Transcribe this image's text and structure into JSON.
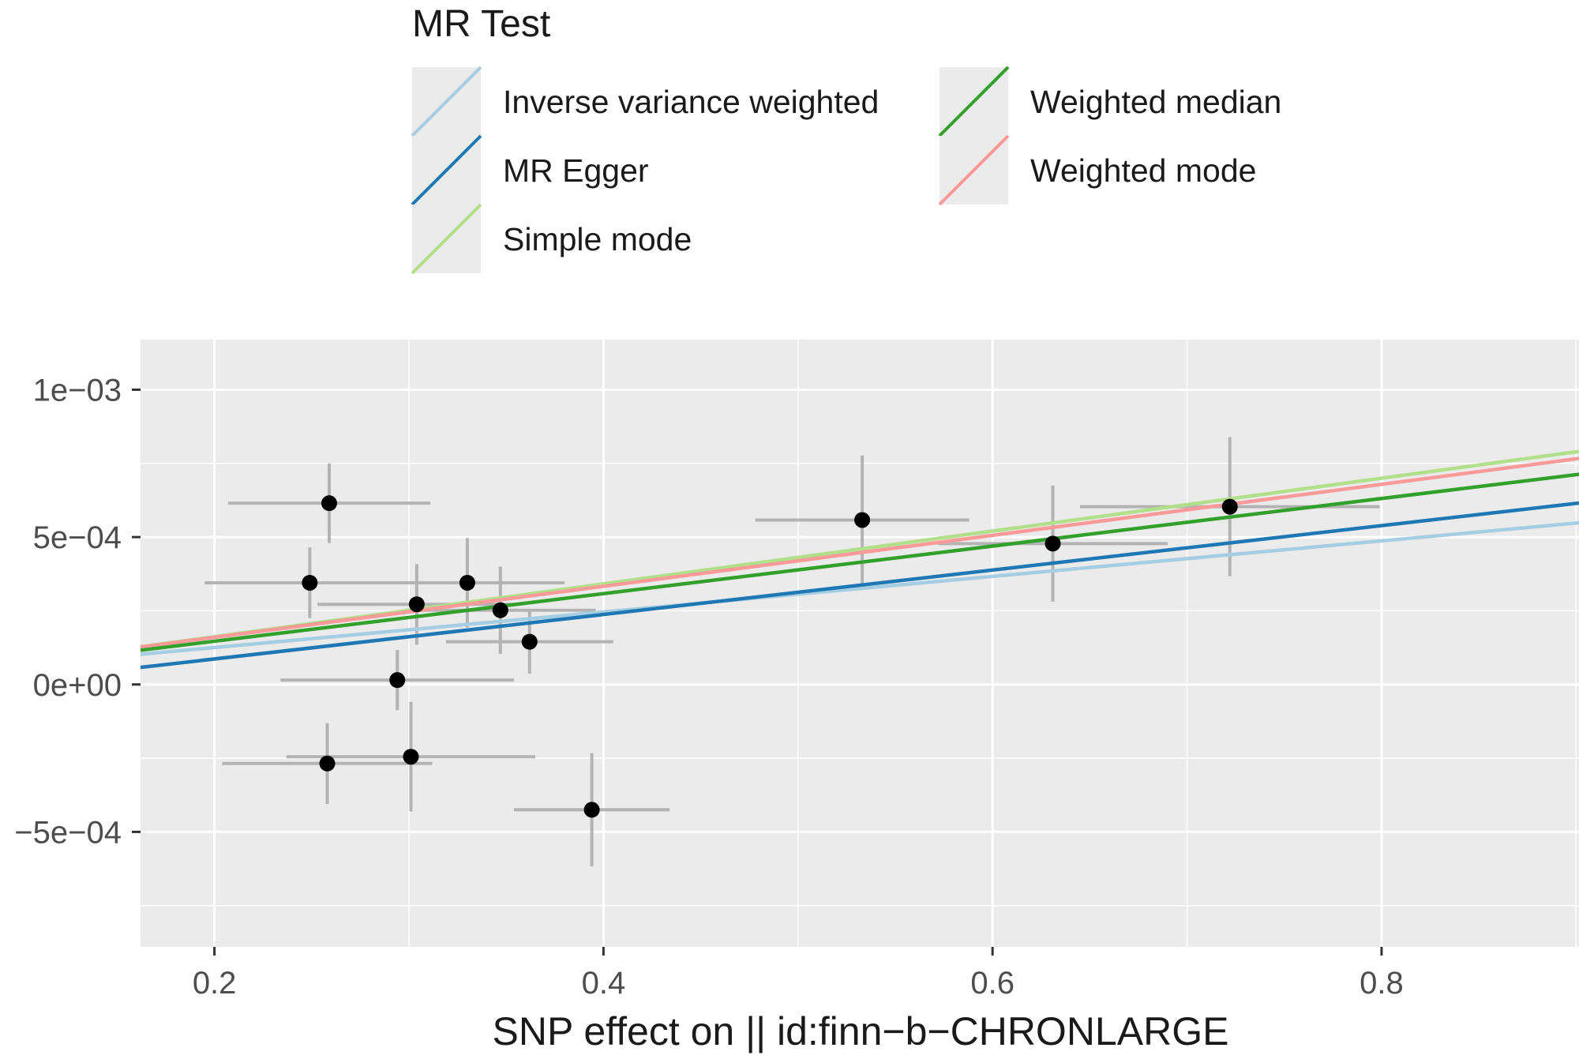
{
  "chart_data": {
    "type": "scatter",
    "title": "",
    "xlabel": "SNP effect on  || id:finn−b−CHRONLARGE",
    "ylabel": "",
    "xlim": [
      0.162,
      0.9015
    ],
    "ylim": [
      -0.00089,
      0.00117
    ],
    "x_ticks": [
      {
        "value": 0.2,
        "label": "0.2"
      },
      {
        "value": 0.4,
        "label": "0.4"
      },
      {
        "value": 0.6,
        "label": "0.6"
      },
      {
        "value": 0.8,
        "label": "0.8"
      }
    ],
    "y_ticks": [
      {
        "value": 0.001,
        "label": "1e−03"
      },
      {
        "value": 0.0005,
        "label": "5e−04"
      },
      {
        "value": 0,
        "label": "0e+00"
      },
      {
        "value": -0.0005,
        "label": "−5e−04"
      }
    ],
    "x_minor_ticks": [
      0.3,
      0.5,
      0.7,
      0.9
    ],
    "y_minor_ticks": [
      0.00075,
      0.00025,
      -0.00025,
      -0.00075
    ],
    "grid": true,
    "legend": {
      "title": "MR Test",
      "position": "top",
      "entries": [
        {
          "label": "Inverse variance weighted",
          "color": "#a6cee3"
        },
        {
          "label": "MR Egger",
          "color": "#1f78b4"
        },
        {
          "label": "Simple mode",
          "color": "#b2df8a"
        },
        {
          "label": "Weighted median",
          "color": "#33a02c"
        },
        {
          "label": "Weighted mode",
          "color": "#fb9a99"
        }
      ]
    },
    "points": [
      {
        "x": 0.259,
        "y": 0.000615,
        "x_se": 0.052,
        "y_se": 0.000135
      },
      {
        "x": 0.249,
        "y": 0.000345,
        "x_se": 0.054,
        "y_se": 0.00012
      },
      {
        "x": 0.304,
        "y": 0.000272,
        "x_se": 0.051,
        "y_se": 0.000137
      },
      {
        "x": 0.33,
        "y": 0.000345,
        "x_se": 0.05,
        "y_se": 0.000152
      },
      {
        "x": 0.347,
        "y": 0.000252,
        "x_se": 0.049,
        "y_se": 0.000148
      },
      {
        "x": 0.362,
        "y": 0.000145,
        "x_se": 0.043,
        "y_se": 0.000108
      },
      {
        "x": 0.294,
        "y": 1.5e-05,
        "x_se": 0.06,
        "y_se": 0.000102
      },
      {
        "x": 0.258,
        "y": -0.000268,
        "x_se": 0.054,
        "y_se": 0.000137
      },
      {
        "x": 0.301,
        "y": -0.000245,
        "x_se": 0.064,
        "y_se": 0.000186
      },
      {
        "x": 0.394,
        "y": -0.000425,
        "x_se": 0.04,
        "y_se": 0.000192
      },
      {
        "x": 0.533,
        "y": 0.000558,
        "x_se": 0.055,
        "y_se": 0.000219
      },
      {
        "x": 0.631,
        "y": 0.000478,
        "x_se": 0.059,
        "y_se": 0.000197
      },
      {
        "x": 0.722,
        "y": 0.000603,
        "x_se": 0.077,
        "y_se": 0.000236
      }
    ],
    "series": [
      {
        "name": "Inverse variance weighted",
        "color": "#a6cee3",
        "intercept": 4.8e-06,
        "slope": 0.000603
      },
      {
        "name": "MR Egger",
        "color": "#1f78b4",
        "intercept": -6.42e-05,
        "slope": 0.000754
      },
      {
        "name": "Simple mode",
        "color": "#b2df8a",
        "intercept": -1.71e-05,
        "slope": 0.000896
      },
      {
        "name": "Weighted median",
        "color": "#33a02c",
        "intercept": -1.47e-05,
        "slope": 0.000807
      },
      {
        "name": "Weighted mode",
        "color": "#fb9a99",
        "intercept": -1.3e-05,
        "slope": 0.000865
      }
    ]
  }
}
